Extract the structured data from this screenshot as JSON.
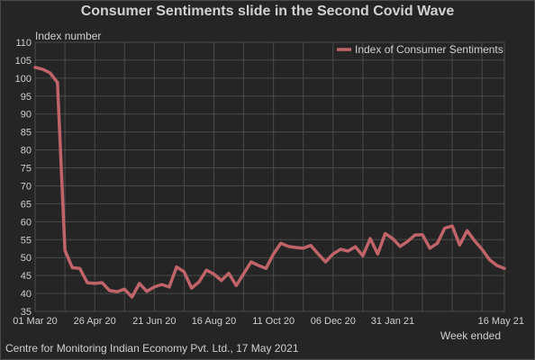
{
  "chart_data": {
    "type": "line",
    "title": "Consumer Sentiments slide in the Second Covid Wave",
    "ylabel": "Index number",
    "xlabel": "Week ended",
    "ylim": [
      35,
      110
    ],
    "yticks": [
      "35",
      "40",
      "45",
      "50",
      "55",
      "60",
      "65",
      "70",
      "75",
      "80",
      "85",
      "90",
      "95",
      "100",
      "105",
      "110"
    ],
    "xticks": [
      "01 Mar 20",
      "26 Apr 20",
      "21 Jun 20",
      "16 Aug 20",
      "11 Oct 20",
      "06 Dec 20",
      "31 Jan 21",
      "16 May 21"
    ],
    "grid": true,
    "legend_position": "top-right",
    "series": [
      {
        "name": "Index of Consumer Sentiments",
        "color": "#c0646a",
        "values": [
          103.0,
          102.5,
          101.5,
          98.8,
          52.0,
          47.2,
          47.0,
          43.0,
          42.8,
          43.0,
          40.8,
          40.5,
          41.2,
          39.0,
          42.8,
          40.6,
          41.8,
          42.5,
          41.8,
          47.4,
          46.0,
          41.5,
          43.2,
          46.5,
          45.4,
          43.6,
          45.6,
          42.2,
          45.5,
          48.8,
          47.8,
          47.0,
          51.0,
          54.0,
          53.1,
          52.8,
          52.6,
          53.4,
          51.0,
          48.8,
          51.0,
          52.3,
          51.8,
          53.0,
          50.5,
          55.3,
          51.0,
          56.7,
          55.3,
          53.1,
          54.5,
          56.3,
          56.4,
          52.6,
          54.0,
          58.2,
          58.8,
          53.5,
          57.5,
          54.7,
          52.3,
          49.4,
          47.8,
          47.0
        ]
      }
    ]
  },
  "source": "Centre for Monitoring Indian Economy Pvt. Ltd., 17 May 2021"
}
